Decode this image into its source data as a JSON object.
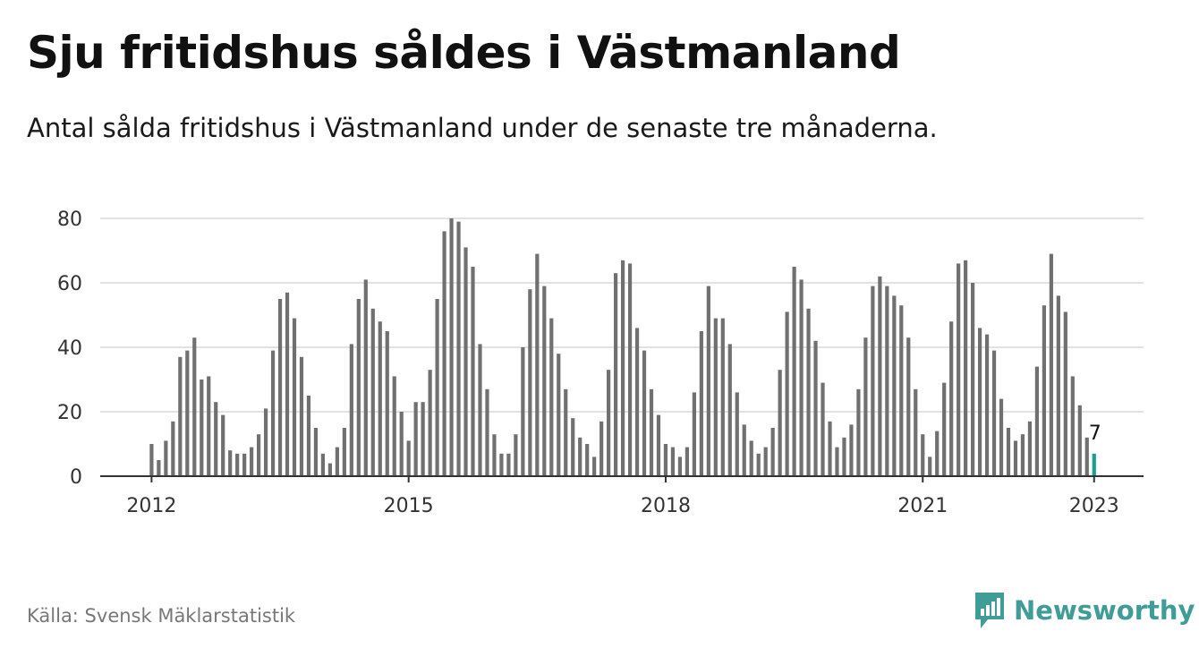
{
  "header": {
    "title": "Sju fritidshus såldes i Västmanland",
    "subtitle": "Antal sålda fritidshus i Västmanland under de senaste tre månaderna."
  },
  "footer": {
    "source": "Källa: Svensk Mäklarstatistik",
    "brand": "Newsworthy"
  },
  "colors": {
    "bar": "#707070",
    "highlight": "#1a9e8f",
    "grid": "#d9d9d9",
    "axis": "#333333",
    "brand": "#3f9c96"
  },
  "chart_data": {
    "type": "bar",
    "x_start": "2012-01",
    "x_frequency": "monthly",
    "values": [
      10,
      5,
      11,
      17,
      37,
      39,
      43,
      30,
      31,
      23,
      19,
      8,
      7,
      7,
      9,
      13,
      21,
      39,
      55,
      57,
      49,
      37,
      25,
      15,
      7,
      4,
      9,
      15,
      41,
      55,
      61,
      52,
      48,
      45,
      31,
      20,
      11,
      23,
      23,
      33,
      55,
      76,
      80,
      79,
      71,
      65,
      41,
      27,
      13,
      7,
      7,
      13,
      40,
      58,
      69,
      59,
      49,
      38,
      27,
      18,
      12,
      10,
      6,
      17,
      33,
      63,
      67,
      66,
      46,
      39,
      27,
      19,
      10,
      9,
      6,
      9,
      26,
      45,
      59,
      49,
      49,
      41,
      26,
      16,
      11,
      7,
      9,
      15,
      33,
      51,
      65,
      61,
      52,
      42,
      29,
      17,
      9,
      12,
      16,
      27,
      43,
      59,
      62,
      59,
      56,
      53,
      43,
      27,
      13,
      6,
      14,
      29,
      48,
      66,
      67,
      60,
      46,
      44,
      39,
      24,
      15,
      11,
      13,
      17,
      34,
      53,
      69,
      56,
      51,
      31,
      22,
      12,
      7
    ],
    "highlight_index": 132,
    "highlight_label": "7",
    "ylim": [
      0,
      80
    ],
    "yticks": [
      "0",
      "20",
      "40",
      "60",
      "80"
    ],
    "xticks": [
      "2012",
      "2015",
      "2018",
      "2021",
      "2023"
    ],
    "xlabel": "",
    "ylabel": "",
    "grid": true
  }
}
